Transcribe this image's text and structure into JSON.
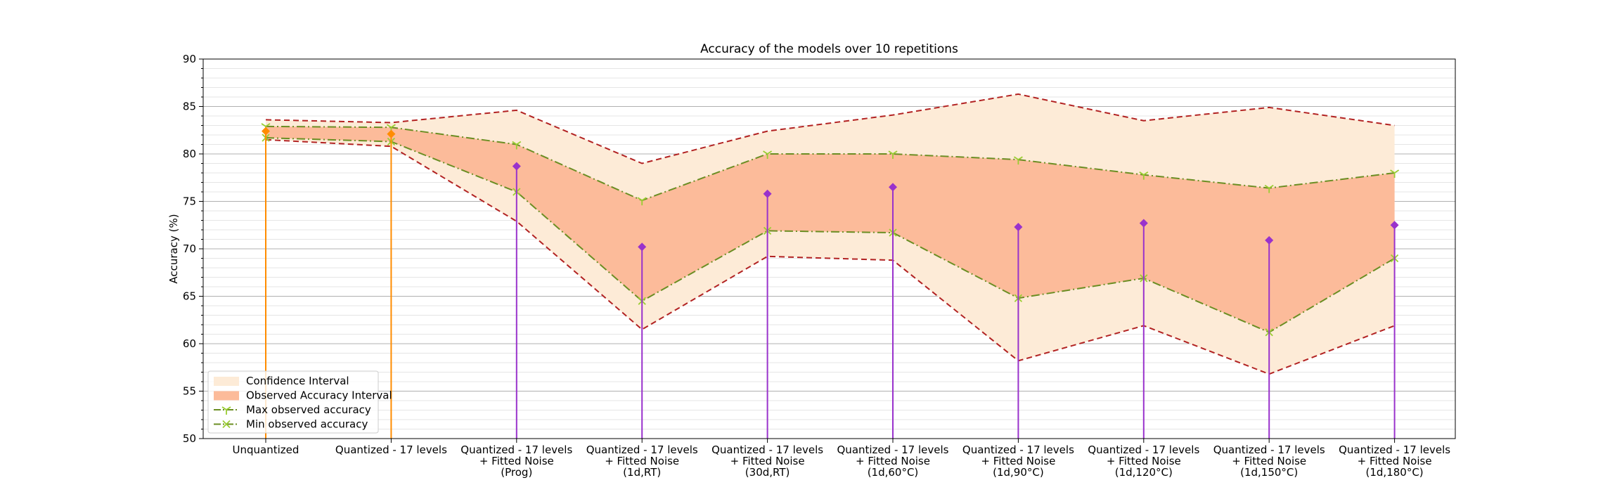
{
  "chart_data": {
    "type": "line",
    "title": "Accuracy of the models over 10 repetitions",
    "xlabel": "",
    "ylabel": "Accuracy (%)",
    "ylim": [
      50,
      90
    ],
    "yticks": [
      50,
      55,
      60,
      65,
      70,
      75,
      80,
      85,
      90
    ],
    "yticks_labels": [
      "50",
      "55",
      "60",
      "65",
      "70",
      "75",
      "80",
      "85",
      "90"
    ],
    "grid": true,
    "legend_position": "bottom-left",
    "categories": [
      [
        "Unquantized"
      ],
      [
        "Quantized - 17 levels"
      ],
      [
        "Quantized - 17 levels",
        "+ Fitted Noise",
        "(Prog)"
      ],
      [
        "Quantized - 17 levels",
        "+ Fitted Noise",
        "(1d,RT)"
      ],
      [
        "Quantized - 17 levels",
        "+ Fitted Noise",
        "(30d,RT)"
      ],
      [
        "Quantized - 17 levels",
        "+ Fitted Noise",
        "(1d,60°C)"
      ],
      [
        "Quantized - 17 levels",
        "+ Fitted Noise",
        "(1d,90°C)"
      ],
      [
        "Quantized - 17 levels",
        "+ Fitted Noise",
        "(1d,120°C)"
      ],
      [
        "Quantized - 17 levels",
        "+ Fitted Noise",
        "(1d,150°C)"
      ],
      [
        "Quantized - 17 levels",
        "+ Fitted Noise",
        "(1d,180°C)"
      ]
    ],
    "confidence_interval": {
      "name": "Confidence Interval",
      "upper": [
        83.6,
        83.3,
        84.6,
        79.0,
        82.4,
        84.1,
        86.3,
        83.5,
        84.9,
        83.0
      ],
      "lower": [
        81.5,
        80.8,
        72.9,
        61.5,
        69.2,
        68.8,
        58.2,
        61.9,
        56.8,
        61.9
      ]
    },
    "series": [
      {
        "name": "Max observed accuracy",
        "values": [
          82.9,
          82.8,
          81.0,
          75.1,
          80.0,
          80.0,
          79.4,
          77.8,
          76.4,
          78.0
        ]
      },
      {
        "name": "Min observed accuracy",
        "values": [
          81.7,
          81.3,
          76.0,
          64.5,
          71.9,
          71.7,
          64.8,
          66.9,
          61.2,
          69.0
        ]
      }
    ],
    "mean_stems": [
      {
        "values": [
          82.4,
          82.1
        ],
        "color": "#ff8c00"
      },
      {
        "values": [
          null,
          null,
          78.7,
          70.2,
          75.8,
          76.5,
          72.3,
          72.7,
          70.9,
          72.5
        ],
        "color": "#9932cc"
      }
    ],
    "legend": [
      "Confidence Interval",
      "Observed Accuracy Interval",
      "Max observed accuracy",
      "Min observed accuracy"
    ],
    "colors": {
      "confidence_fill": "#fdebd7",
      "observed_fill": "#fcbb9a",
      "bound_line": "#b22222",
      "observed_line": "#6b8e23",
      "observed_marker": "#9acd32",
      "grid_major": "#b0b0b0",
      "grid_minor": "#dddddd"
    }
  }
}
